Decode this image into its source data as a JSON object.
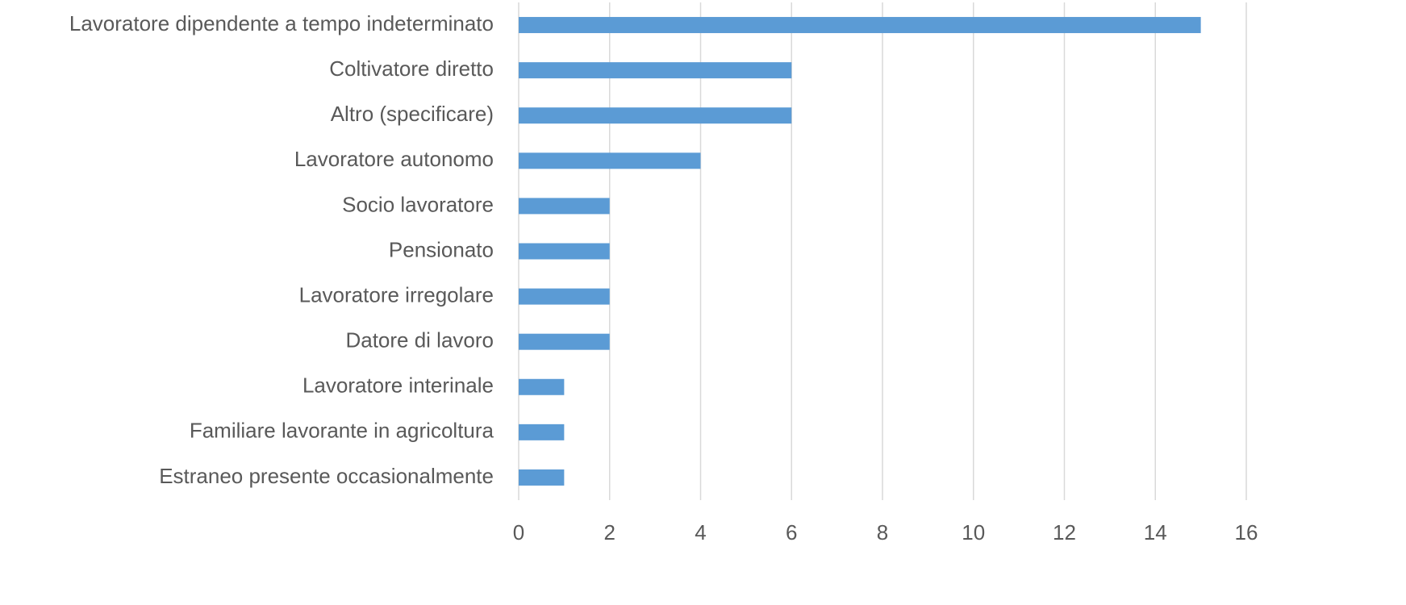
{
  "chart_data": {
    "type": "bar",
    "orientation": "horizontal",
    "categories": [
      "Lavoratore dipendente a tempo indeterminato",
      "Coltivatore diretto",
      "Altro (specificare)",
      "Lavoratore autonomo",
      "Socio lavoratore",
      "Pensionato",
      "Lavoratore irregolare",
      "Datore di lavoro",
      "Lavoratore interinale",
      "Familiare lavorante in agricoltura",
      "Estraneo presente occasionalmente"
    ],
    "values": [
      15,
      6,
      6,
      4,
      2,
      2,
      2,
      2,
      1,
      1,
      1
    ],
    "color": "#5b9bd5",
    "xlim": [
      0,
      16
    ],
    "xticks": [
      0,
      2,
      4,
      6,
      8,
      10,
      12,
      14,
      16
    ],
    "grid": true
  }
}
